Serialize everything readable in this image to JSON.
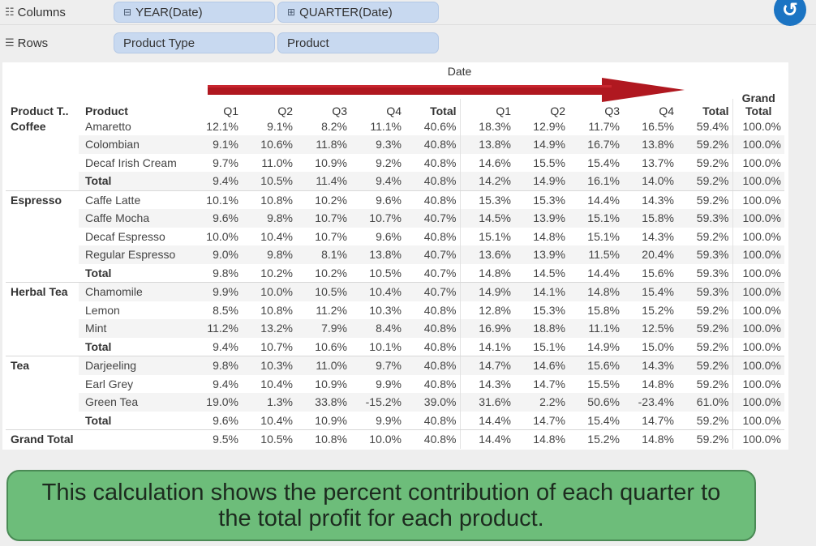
{
  "shelves": {
    "columns": {
      "label": "Columns",
      "pills": [
        "YEAR(Date)",
        "QUARTER(Date)"
      ]
    },
    "rows": {
      "label": "Rows",
      "pills": [
        "Product Type",
        "Product"
      ]
    }
  },
  "table": {
    "date_header": "Date",
    "header_product_type": "Product T..",
    "header_product": "Product",
    "header_grand_total_line1": "Grand",
    "header_grand_total_line2": "Total",
    "quarter_labels": [
      "Q1",
      "Q2",
      "Q3",
      "Q4",
      "Total",
      "Q1",
      "Q2",
      "Q3",
      "Q4",
      "Total"
    ],
    "rows": [
      {
        "type": "Coffee",
        "product": "Amaretto",
        "values": [
          "12.1%",
          "9.1%",
          "8.2%",
          "11.1%",
          "40.6%",
          "18.3%",
          "12.9%",
          "11.7%",
          "16.5%",
          "59.4%",
          "100.0%"
        ]
      },
      {
        "type": "",
        "product": "Colombian",
        "values": [
          "9.1%",
          "10.6%",
          "11.8%",
          "9.3%",
          "40.8%",
          "13.8%",
          "14.9%",
          "16.7%",
          "13.8%",
          "59.2%",
          "100.0%"
        ]
      },
      {
        "type": "",
        "product": "Decaf Irish Cream",
        "values": [
          "9.7%",
          "11.0%",
          "10.9%",
          "9.2%",
          "40.8%",
          "14.6%",
          "15.5%",
          "15.4%",
          "13.7%",
          "59.2%",
          "100.0%"
        ]
      },
      {
        "type": "",
        "product": "Total",
        "values": [
          "9.4%",
          "10.5%",
          "11.4%",
          "9.4%",
          "40.8%",
          "14.2%",
          "14.9%",
          "16.1%",
          "14.0%",
          "59.2%",
          "100.0%"
        ]
      },
      {
        "type": "Espresso",
        "product": "Caffe Latte",
        "values": [
          "10.1%",
          "10.8%",
          "10.2%",
          "9.6%",
          "40.8%",
          "15.3%",
          "15.3%",
          "14.4%",
          "14.3%",
          "59.2%",
          "100.0%"
        ]
      },
      {
        "type": "",
        "product": "Caffe Mocha",
        "values": [
          "9.6%",
          "9.8%",
          "10.7%",
          "10.7%",
          "40.7%",
          "14.5%",
          "13.9%",
          "15.1%",
          "15.8%",
          "59.3%",
          "100.0%"
        ]
      },
      {
        "type": "",
        "product": "Decaf Espresso",
        "values": [
          "10.0%",
          "10.4%",
          "10.7%",
          "9.6%",
          "40.8%",
          "15.1%",
          "14.8%",
          "15.1%",
          "14.3%",
          "59.2%",
          "100.0%"
        ]
      },
      {
        "type": "",
        "product": "Regular Espresso",
        "values": [
          "9.0%",
          "9.8%",
          "8.1%",
          "13.8%",
          "40.7%",
          "13.6%",
          "13.9%",
          "11.5%",
          "20.4%",
          "59.3%",
          "100.0%"
        ]
      },
      {
        "type": "",
        "product": "Total",
        "values": [
          "9.8%",
          "10.2%",
          "10.2%",
          "10.5%",
          "40.7%",
          "14.8%",
          "14.5%",
          "14.4%",
          "15.6%",
          "59.3%",
          "100.0%"
        ]
      },
      {
        "type": "Herbal Tea",
        "product": "Chamomile",
        "values": [
          "9.9%",
          "10.0%",
          "10.5%",
          "10.4%",
          "40.7%",
          "14.9%",
          "14.1%",
          "14.8%",
          "15.4%",
          "59.3%",
          "100.0%"
        ]
      },
      {
        "type": "",
        "product": "Lemon",
        "values": [
          "8.5%",
          "10.8%",
          "11.2%",
          "10.3%",
          "40.8%",
          "12.8%",
          "15.3%",
          "15.8%",
          "15.2%",
          "59.2%",
          "100.0%"
        ]
      },
      {
        "type": "",
        "product": "Mint",
        "values": [
          "11.2%",
          "13.2%",
          "7.9%",
          "8.4%",
          "40.8%",
          "16.9%",
          "18.8%",
          "11.1%",
          "12.5%",
          "59.2%",
          "100.0%"
        ]
      },
      {
        "type": "",
        "product": "Total",
        "values": [
          "9.4%",
          "10.7%",
          "10.6%",
          "10.1%",
          "40.8%",
          "14.1%",
          "15.1%",
          "14.9%",
          "15.0%",
          "59.2%",
          "100.0%"
        ]
      },
      {
        "type": "Tea",
        "product": "Darjeeling",
        "values": [
          "9.8%",
          "10.3%",
          "11.0%",
          "9.7%",
          "40.8%",
          "14.7%",
          "14.6%",
          "15.6%",
          "14.3%",
          "59.2%",
          "100.0%"
        ]
      },
      {
        "type": "",
        "product": "Earl Grey",
        "values": [
          "9.4%",
          "10.4%",
          "10.9%",
          "9.9%",
          "40.8%",
          "14.3%",
          "14.7%",
          "15.5%",
          "14.8%",
          "59.2%",
          "100.0%"
        ]
      },
      {
        "type": "",
        "product": "Green Tea",
        "values": [
          "19.0%",
          "1.3%",
          "33.8%",
          "-15.2%",
          "39.0%",
          "31.6%",
          "2.2%",
          "50.6%",
          "-23.4%",
          "61.0%",
          "100.0%"
        ]
      },
      {
        "type": "",
        "product": "Total",
        "values": [
          "9.6%",
          "10.4%",
          "10.9%",
          "9.9%",
          "40.8%",
          "14.4%",
          "14.7%",
          "15.4%",
          "14.7%",
          "59.2%",
          "100.0%"
        ]
      }
    ],
    "grand_total": {
      "label": "Grand Total",
      "values": [
        "9.5%",
        "10.5%",
        "10.8%",
        "10.0%",
        "40.8%",
        "14.4%",
        "14.8%",
        "15.2%",
        "14.8%",
        "59.2%",
        "100.0%"
      ]
    }
  },
  "callout_text": "This calculation shows the percent contribution of each quarter to the total profit for each product.",
  "colors": {
    "pill": "#c8d9f0",
    "arrow": "#b01820",
    "callout": "#6dbd7a",
    "undo": "#1b74c3"
  },
  "icons": {
    "columns": "columns-icon",
    "rows": "rows-icon",
    "undo": "undo-icon",
    "collapse": "minus-box-icon",
    "expand": "plus-box-icon"
  }
}
